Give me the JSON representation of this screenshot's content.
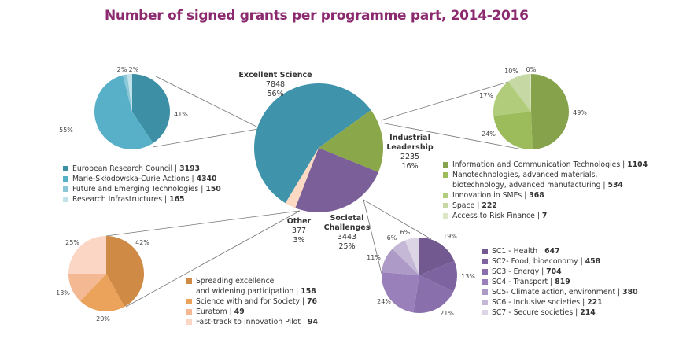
{
  "chart_data": {
    "type": "pie",
    "title": "Number of signed grants per programme part, 2014-2016",
    "main": {
      "slices": [
        {
          "name": "Excellent Science",
          "value": 7848,
          "pct": "56%",
          "color": "#3f94ab"
        },
        {
          "name_lines": [
            "Industrial",
            "Leadership"
          ],
          "name": "Industrial Leadership",
          "value": 2235,
          "pct": "16%",
          "color": "#8aa84a"
        },
        {
          "name_lines": [
            "Societal",
            "Challenges"
          ],
          "name": "Societal Challenges",
          "value": 3443,
          "pct": "25%",
          "color": "#7a5f98"
        },
        {
          "name": "Other",
          "value": 377,
          "pct": "3%",
          "color": "#fbd9c3"
        }
      ]
    },
    "breakdowns": [
      {
        "parent": "Excellent Science",
        "slices": [
          {
            "label": "European Research Council",
            "value": 3193,
            "pct": "41%",
            "color": "#3d8fa6"
          },
          {
            "label": "Marie-Skłodowska-Curie Actions",
            "value": 4340,
            "pct": "55%",
            "color": "#58b0c8"
          },
          {
            "label": "Future and Emerging Technologies",
            "value": 150,
            "pct": "2%",
            "color": "#8ac8d8"
          },
          {
            "label": "Research Infrastructures",
            "value": 165,
            "pct": "2%",
            "color": "#c2e2ea"
          }
        ]
      },
      {
        "parent": "Industrial Leadership",
        "slices": [
          {
            "label": "Information and Communication Technologies",
            "value": 1104,
            "pct": "49%",
            "color": "#86a24b"
          },
          {
            "label": "Nanotechnologies, advanced materials, biotechnology, advanced manufacturing",
            "label_lines": [
              "Nanotechnologies, advanced materials,",
              "biotechnology, advanced manufacturing"
            ],
            "value": 534,
            "pct": "24%",
            "color": "#9cbb5b"
          },
          {
            "label": "Innovation in SMEs",
            "value": 368,
            "pct": "17%",
            "color": "#b1cc7a"
          },
          {
            "label": "Space",
            "value": 222,
            "pct": "10%",
            "color": "#c6d9a4"
          },
          {
            "label": "Access to Risk Finance",
            "value": 7,
            "pct": "0%",
            "color": "#dbe7c7"
          }
        ]
      },
      {
        "parent": "Other",
        "slices": [
          {
            "label": "Spreading excellence and widening participation",
            "label_lines": [
              "Spreading excellence",
              "and widening participation"
            ],
            "value": 158,
            "pct": "42%",
            "color": "#cf8a45"
          },
          {
            "label": "Science with and for Society",
            "value": 76,
            "pct": "20%",
            "color": "#eba35b"
          },
          {
            "label": "Euratom",
            "value": 49,
            "pct": "13%",
            "color": "#f4b893"
          },
          {
            "label": "Fast-track to Innovation Pilot",
            "value": 94,
            "pct": "25%",
            "color": "#fbd6c4"
          }
        ]
      },
      {
        "parent": "Societal Challenges",
        "slices": [
          {
            "label": "SC1 - Health",
            "value": 647,
            "pct": "19%",
            "color": "#72598f"
          },
          {
            "label": "SC2- Food, bioeconomy",
            "value": 458,
            "pct": "13%",
            "color": "#7d64a0"
          },
          {
            "label": "SC3 - Energy",
            "value": 704,
            "pct": "21%",
            "color": "#8a6fad"
          },
          {
            "label": "SC4 - Transport",
            "value": 819,
            "pct": "24%",
            "color": "#9a80bb"
          },
          {
            "label": "SC5- Climate action,  environment",
            "value": 380,
            "pct": "11%",
            "color": "#ad9ac6"
          },
          {
            "label": "SC6 - Inclusive societies",
            "value": 221,
            "pct": "6%",
            "color": "#c4b8d6"
          },
          {
            "label": "SC7 - Secure societies",
            "value": 214,
            "pct": "6%",
            "color": "#dcd5e6"
          }
        ]
      }
    ]
  }
}
